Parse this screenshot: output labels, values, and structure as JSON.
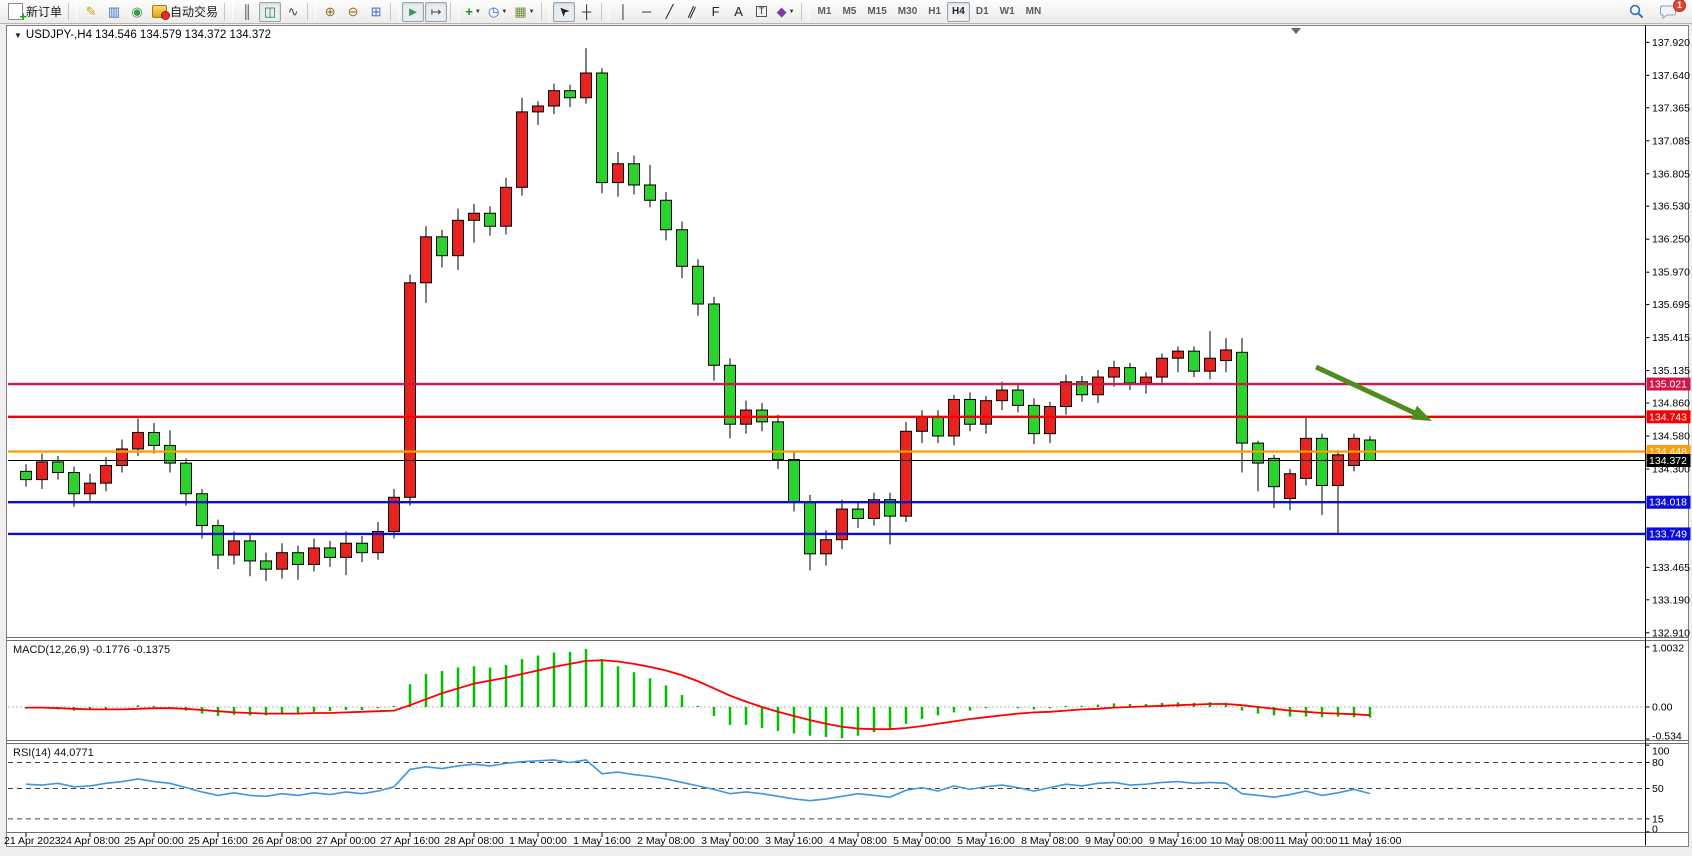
{
  "toolbar": {
    "new_order_label": "新订单",
    "autotrading_label": "自动交易",
    "chat_badge": "1",
    "periods": [
      "M1",
      "M5",
      "M15",
      "M30",
      "H1",
      "H4",
      "D1",
      "W1",
      "MN"
    ],
    "active_period": "H4",
    "items": [
      {
        "name": "new-order",
        "kind": "new-order",
        "label": "新订单"
      },
      {
        "name": "sep"
      },
      {
        "name": "style-pen",
        "glyph": "✎",
        "color": "#c99a16"
      },
      {
        "name": "market-panel",
        "glyph": "▥",
        "color": "#3a6fc4"
      },
      {
        "name": "signals",
        "glyph": "◉",
        "color": "#2f9e44"
      },
      {
        "name": "autotrading",
        "kind": "autotrading",
        "label": "自动交易"
      },
      {
        "name": "sep"
      },
      {
        "name": "bar-chart",
        "glyph": "║",
        "color": "#444444"
      },
      {
        "name": "candlestick-chart",
        "glyph": "◫",
        "color": "#2f7d32",
        "active": true
      },
      {
        "name": "line-chart",
        "glyph": "∿",
        "color": "#444444"
      },
      {
        "name": "sep"
      },
      {
        "name": "zoom-in",
        "glyph": "⊕",
        "color": "#8a6d1a"
      },
      {
        "name": "zoom-out",
        "glyph": "⊖",
        "color": "#8a6d1a"
      },
      {
        "name": "tile-windows",
        "glyph": "⊞",
        "color": "#3a6fc4"
      },
      {
        "name": "sep"
      },
      {
        "name": "auto-scroll",
        "glyph": "►",
        "color": "#2f9e44",
        "active": true
      },
      {
        "name": "chart-shift",
        "glyph": "↦",
        "color": "#444444",
        "active": true
      },
      {
        "name": "sep"
      },
      {
        "name": "indicators",
        "glyph": "+",
        "color": "#149114",
        "caret": true,
        "bold": true
      },
      {
        "name": "timeframes",
        "glyph": "◷",
        "color": "#3a6fc4",
        "caret": true
      },
      {
        "name": "templates",
        "glyph": "▦",
        "color": "#6a8f3a",
        "caret": true
      },
      {
        "name": "sep"
      },
      {
        "name": "cursor",
        "glyph": "➤",
        "color": "#222222",
        "active": true,
        "rot": -135
      },
      {
        "name": "crosshair",
        "glyph": "┼",
        "color": "#222222"
      },
      {
        "name": "sep"
      },
      {
        "name": "vertical-line",
        "glyph": "│",
        "color": "#222222"
      },
      {
        "name": "horizontal-line",
        "glyph": "─",
        "color": "#222222"
      },
      {
        "name": "trendline",
        "glyph": "╱",
        "color": "#222222"
      },
      {
        "name": "equidistant-channel",
        "glyph": "∥",
        "color": "#222222",
        "rot": 25
      },
      {
        "name": "fibonacci",
        "glyph": "F",
        "color": "#222222"
      },
      {
        "name": "text",
        "glyph": "A",
        "color": "#222222"
      },
      {
        "name": "text-label",
        "glyph": "T",
        "color": "#222222",
        "boxed": true
      },
      {
        "name": "arrows",
        "glyph": "◆",
        "color": "#7c3aaa",
        "caret": true
      },
      {
        "name": "sep"
      }
    ]
  },
  "chart": {
    "title": "USDJPY-,H4  134.546 134.579 134.372 134.372",
    "macd_label": "MACD(12,26,9) -0.1776 -0.1375",
    "rsi_label": "RSI(14) 44.0771"
  },
  "chart_data": {
    "type": "candlestick",
    "symbol": "USDJPY-",
    "timeframe": "H4",
    "current_bar": {
      "open": 134.546,
      "high": 134.579,
      "low": 134.372,
      "close": 134.372
    },
    "convention": "red-up-green-down",
    "colors": {
      "up": "#e8221c",
      "down": "#2bd32b",
      "wick": "#000000",
      "macd_hist": "#00c000",
      "macd_signal": "#ff0000",
      "rsi": "#3d96e0"
    },
    "price_ticks": [
      "137.920",
      "137.640",
      "137.365",
      "137.085",
      "136.805",
      "136.530",
      "136.250",
      "135.970",
      "135.695",
      "135.415",
      "135.135",
      "134.860",
      "134.580",
      "134.300",
      "133.465",
      "133.190",
      "132.910"
    ],
    "time_labels": [
      "21 Apr 2023",
      "24 Apr 08:00",
      "25 Apr 00:00",
      "25 Apr 16:00",
      "26 Apr 08:00",
      "27 Apr 00:00",
      "27 Apr 16:00",
      "28 Apr 08:00",
      "1 May 00:00",
      "1 May 16:00",
      "2 May 08:00",
      "3 May 00:00",
      "3 May 16:00",
      "4 May 08:00",
      "5 May 00:00",
      "5 May 16:00",
      "8 May 08:00",
      "9 May 00:00",
      "9 May 16:00",
      "10 May 08:00",
      "11 May 00:00",
      "11 May 16:00"
    ],
    "hlines": [
      {
        "price": 135.021,
        "label": "135.021",
        "color": "#d01848",
        "width": 2.4
      },
      {
        "price": 134.743,
        "label": "134.743",
        "color": "#f50000",
        "width": 2.4
      },
      {
        "price": 134.448,
        "label": "134.448",
        "color": "#ff9d00",
        "width": 2.4
      },
      {
        "price": 134.372,
        "label": "134.372",
        "color": "#000000",
        "width": 1,
        "current": true
      },
      {
        "price": 134.018,
        "label": "134.018",
        "color": "#0b0bdc",
        "width": 2.4
      },
      {
        "price": 133.749,
        "label": "133.749",
        "color": "#0b0bdc",
        "width": 2.4
      }
    ],
    "trend_arrow": {
      "from": [
        1316,
        367
      ],
      "to": [
        1432,
        421
      ],
      "color": "#4e8c1e"
    },
    "candles": [
      [
        134.28,
        134.34,
        134.15,
        134.21
      ],
      [
        134.21,
        134.43,
        134.13,
        134.36
      ],
      [
        134.36,
        134.41,
        134.21,
        134.27
      ],
      [
        134.27,
        134.32,
        133.98,
        134.09
      ],
      [
        134.09,
        134.26,
        134.03,
        134.18
      ],
      [
        134.18,
        134.4,
        134.11,
        134.33
      ],
      [
        134.33,
        134.55,
        134.27,
        134.47
      ],
      [
        134.47,
        134.73,
        134.41,
        134.61
      ],
      [
        134.61,
        134.69,
        134.43,
        134.5
      ],
      [
        134.5,
        134.63,
        134.27,
        134.35
      ],
      [
        134.35,
        134.39,
        133.99,
        134.09
      ],
      [
        134.09,
        134.13,
        133.71,
        133.82
      ],
      [
        133.82,
        133.87,
        133.45,
        133.57
      ],
      [
        133.57,
        133.77,
        133.49,
        133.69
      ],
      [
        133.69,
        133.75,
        133.39,
        133.52
      ],
      [
        133.52,
        133.59,
        133.35,
        133.45
      ],
      [
        133.45,
        133.67,
        133.37,
        133.59
      ],
      [
        133.59,
        133.65,
        133.36,
        133.49
      ],
      [
        133.49,
        133.71,
        133.43,
        133.63
      ],
      [
        133.63,
        133.69,
        133.47,
        133.55
      ],
      [
        133.55,
        133.77,
        133.4,
        133.67
      ],
      [
        133.67,
        133.73,
        133.51,
        133.59
      ],
      [
        133.59,
        133.85,
        133.53,
        133.77
      ],
      [
        133.77,
        134.13,
        133.71,
        134.06
      ],
      [
        134.06,
        135.95,
        133.99,
        135.88
      ],
      [
        135.88,
        136.36,
        135.71,
        136.27
      ],
      [
        136.27,
        136.33,
        136.01,
        136.11
      ],
      [
        136.11,
        136.51,
        135.99,
        136.41
      ],
      [
        136.41,
        136.55,
        136.22,
        136.47
      ],
      [
        136.47,
        136.53,
        136.28,
        136.36
      ],
      [
        136.36,
        136.77,
        136.29,
        136.69
      ],
      [
        136.69,
        137.45,
        136.62,
        137.33
      ],
      [
        137.33,
        137.42,
        137.22,
        137.38
      ],
      [
        137.38,
        137.57,
        137.31,
        137.51
      ],
      [
        137.51,
        137.56,
        137.37,
        137.45
      ],
      [
        137.45,
        137.87,
        137.4,
        137.66
      ],
      [
        137.66,
        137.7,
        136.64,
        136.73
      ],
      [
        136.73,
        136.99,
        136.61,
        136.89
      ],
      [
        136.89,
        136.96,
        136.63,
        136.71
      ],
      [
        136.71,
        136.88,
        136.52,
        136.58
      ],
      [
        136.58,
        136.65,
        136.24,
        136.33
      ],
      [
        136.33,
        136.4,
        135.92,
        136.02
      ],
      [
        136.02,
        136.08,
        135.6,
        135.7
      ],
      [
        135.7,
        135.76,
        135.05,
        135.18
      ],
      [
        135.18,
        135.24,
        134.56,
        134.68
      ],
      [
        134.68,
        134.88,
        134.6,
        134.8
      ],
      [
        134.8,
        134.86,
        134.62,
        134.7
      ],
      [
        134.7,
        134.76,
        134.3,
        134.38
      ],
      [
        134.38,
        134.44,
        133.94,
        134.02
      ],
      [
        134.02,
        134.08,
        133.44,
        133.58
      ],
      [
        133.58,
        133.78,
        133.48,
        133.7
      ],
      [
        133.7,
        134.04,
        133.62,
        133.96
      ],
      [
        133.96,
        134.02,
        133.8,
        133.88
      ],
      [
        133.88,
        134.1,
        133.82,
        134.04
      ],
      [
        134.04,
        134.1,
        133.66,
        133.9
      ],
      [
        133.9,
        134.7,
        133.85,
        134.62
      ],
      [
        134.62,
        134.8,
        134.52,
        134.74
      ],
      [
        134.74,
        134.8,
        134.52,
        134.58
      ],
      [
        134.58,
        134.93,
        134.5,
        134.89
      ],
      [
        134.89,
        134.95,
        134.62,
        134.68
      ],
      [
        134.68,
        134.92,
        134.6,
        134.88
      ],
      [
        134.88,
        135.04,
        134.8,
        134.97
      ],
      [
        134.97,
        135.02,
        134.78,
        134.84
      ],
      [
        134.84,
        134.9,
        134.51,
        134.6
      ],
      [
        134.6,
        134.87,
        134.52,
        134.83
      ],
      [
        134.83,
        135.1,
        134.76,
        135.04
      ],
      [
        135.04,
        135.09,
        134.87,
        134.93
      ],
      [
        134.93,
        135.14,
        134.86,
        135.08
      ],
      [
        135.08,
        135.22,
        135.0,
        135.16
      ],
      [
        135.16,
        135.2,
        134.97,
        135.03
      ],
      [
        135.03,
        135.12,
        134.94,
        135.08
      ],
      [
        135.08,
        135.28,
        135.01,
        135.24
      ],
      [
        135.24,
        135.34,
        135.12,
        135.3
      ],
      [
        135.3,
        135.34,
        135.08,
        135.13
      ],
      [
        135.13,
        135.47,
        135.06,
        135.24
      ],
      [
        135.22,
        135.41,
        135.12,
        135.31
      ],
      [
        135.29,
        135.41,
        134.27,
        134.52
      ],
      [
        134.52,
        134.54,
        134.11,
        134.35
      ],
      [
        134.39,
        134.42,
        133.97,
        134.15
      ],
      [
        134.05,
        134.3,
        133.95,
        134.26
      ],
      [
        134.22,
        134.74,
        134.16,
        134.56
      ],
      [
        134.56,
        134.6,
        133.91,
        134.16
      ],
      [
        134.16,
        134.46,
        133.75,
        134.42
      ],
      [
        134.33,
        134.6,
        134.28,
        134.56
      ],
      [
        134.546,
        134.579,
        134.372,
        134.372
      ]
    ],
    "macd": {
      "label": "MACD(12,26,9)",
      "display_values": "-0.1776 -0.1375",
      "scale": [
        {
          "v": 1.0032,
          "t": "1.0032"
        },
        {
          "v": 0.0,
          "t": "0.00"
        },
        {
          "v": -0.534,
          "t": "-0.534"
        }
      ],
      "hist": [
        -0.03,
        -0.02,
        -0.04,
        -0.06,
        -0.05,
        -0.03,
        0.0,
        0.03,
        0.02,
        -0.01,
        -0.06,
        -0.11,
        -0.15,
        -0.13,
        -0.14,
        -0.14,
        -0.11,
        -0.1,
        -0.08,
        -0.07,
        -0.05,
        -0.05,
        -0.02,
        0.02,
        0.38,
        0.55,
        0.6,
        0.66,
        0.68,
        0.66,
        0.7,
        0.8,
        0.86,
        0.91,
        0.92,
        0.97,
        0.8,
        0.68,
        0.58,
        0.48,
        0.36,
        0.2,
        0.02,
        -0.15,
        -0.3,
        -0.3,
        -0.35,
        -0.4,
        -0.44,
        -0.48,
        -0.5,
        -0.52,
        -0.48,
        -0.42,
        -0.36,
        -0.28,
        -0.2,
        -0.14,
        -0.09,
        -0.06,
        -0.02,
        0.0,
        -0.02,
        -0.04,
        -0.02,
        0.02,
        0.02,
        0.04,
        0.06,
        0.05,
        0.05,
        0.07,
        0.08,
        0.07,
        0.08,
        0.07,
        -0.06,
        -0.11,
        -0.14,
        -0.16,
        -0.16,
        -0.17,
        -0.16,
        -0.17,
        -0.1776
      ],
      "signal": [
        -0.01,
        -0.01,
        -0.02,
        -0.03,
        -0.04,
        -0.04,
        -0.04,
        -0.03,
        -0.02,
        -0.02,
        -0.03,
        -0.05,
        -0.07,
        -0.09,
        -0.1,
        -0.11,
        -0.11,
        -0.11,
        -0.1,
        -0.1,
        -0.09,
        -0.08,
        -0.07,
        -0.06,
        0.03,
        0.13,
        0.23,
        0.31,
        0.39,
        0.44,
        0.49,
        0.55,
        0.61,
        0.67,
        0.72,
        0.77,
        0.78,
        0.76,
        0.72,
        0.67,
        0.61,
        0.53,
        0.43,
        0.31,
        0.19,
        0.09,
        0.0,
        -0.08,
        -0.15,
        -0.22,
        -0.28,
        -0.33,
        -0.36,
        -0.37,
        -0.37,
        -0.35,
        -0.32,
        -0.28,
        -0.24,
        -0.2,
        -0.17,
        -0.14,
        -0.11,
        -0.09,
        -0.08,
        -0.06,
        -0.04,
        -0.03,
        -0.01,
        0.0,
        0.01,
        0.02,
        0.03,
        0.04,
        0.05,
        0.05,
        0.03,
        0.0,
        -0.03,
        -0.06,
        -0.08,
        -0.1,
        -0.11,
        -0.12,
        -0.1375
      ]
    },
    "rsi": {
      "label": "RSI(14)",
      "current": "44.0771",
      "levels": [
        80,
        50,
        15
      ],
      "scale": [
        {
          "v": 100,
          "t": "100"
        },
        {
          "v": 80,
          "t": "80"
        },
        {
          "v": 50,
          "t": "50"
        },
        {
          "v": 15,
          "t": "15"
        },
        {
          "v": 0,
          "t": "0"
        }
      ],
      "values": [
        55,
        54,
        56,
        52,
        53,
        56,
        58,
        61,
        58,
        56,
        51,
        46,
        42,
        45,
        42,
        41,
        44,
        42,
        45,
        43,
        46,
        44,
        47,
        52,
        72,
        75,
        73,
        76,
        78,
        76,
        79,
        81,
        82,
        83,
        80,
        83,
        67,
        69,
        66,
        64,
        61,
        57,
        53,
        49,
        44,
        46,
        44,
        41,
        38,
        36,
        38,
        41,
        44,
        42,
        40,
        48,
        51,
        47,
        53,
        49,
        52,
        54,
        51,
        47,
        51,
        55,
        53,
        56,
        57,
        54,
        55,
        57,
        58,
        56,
        57,
        56,
        44,
        42,
        40,
        43,
        47,
        42,
        45,
        49,
        44.0771
      ]
    }
  }
}
